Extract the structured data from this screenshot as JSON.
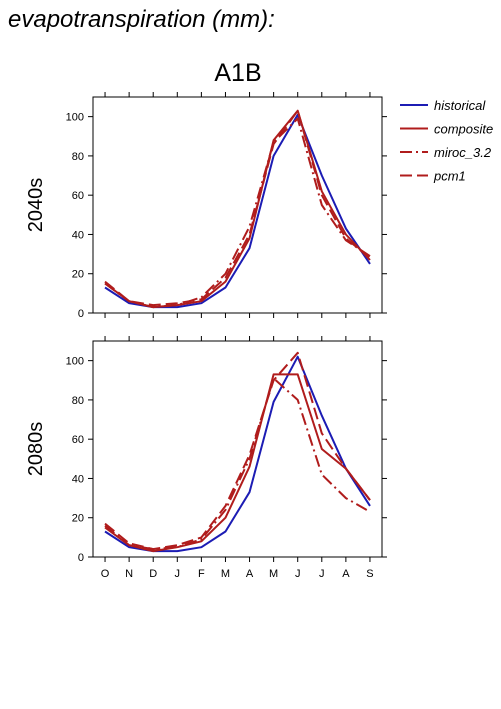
{
  "page": {
    "title": "evapotranspiration (mm):"
  },
  "chart_data": [
    {
      "type": "line",
      "title": "A1B",
      "ylabel": "2040s",
      "categories": [
        "O",
        "N",
        "D",
        "J",
        "F",
        "M",
        "A",
        "M",
        "J",
        "J",
        "A",
        "S"
      ],
      "ylim": [
        0,
        110
      ],
      "yticks": [
        0,
        20,
        40,
        60,
        80,
        100
      ],
      "series": [
        {
          "name": "historical",
          "values": [
            13,
            5,
            3,
            3,
            5,
            13,
            33,
            80,
            101,
            70,
            43,
            25
          ]
        },
        {
          "name": "composite",
          "values": [
            15,
            6,
            3,
            4,
            6,
            16,
            38,
            88,
            103,
            62,
            40,
            27
          ]
        },
        {
          "name": "miroc_3.2",
          "values": [
            15,
            6,
            3,
            4,
            8,
            20,
            44,
            87,
            99,
            55,
            37,
            29
          ]
        },
        {
          "name": "pcm1",
          "values": [
            16,
            6,
            4,
            5,
            7,
            18,
            40,
            86,
            103,
            60,
            38,
            28
          ]
        }
      ]
    },
    {
      "type": "line",
      "title": "",
      "ylabel": "2080s",
      "categories": [
        "O",
        "N",
        "D",
        "J",
        "F",
        "M",
        "A",
        "M",
        "J",
        "J",
        "A",
        "S"
      ],
      "ylim": [
        0,
        110
      ],
      "yticks": [
        0,
        20,
        40,
        60,
        80,
        100
      ],
      "series": [
        {
          "name": "historical",
          "values": [
            13,
            5,
            3,
            3,
            5,
            13,
            33,
            79,
            102,
            72,
            45,
            26
          ]
        },
        {
          "name": "composite",
          "values": [
            15,
            6,
            3,
            5,
            8,
            20,
            46,
            93,
            93,
            55,
            45,
            29
          ]
        },
        {
          "name": "miroc_3.2",
          "values": [
            16,
            6,
            4,
            5,
            9,
            24,
            50,
            91,
            80,
            42,
            30,
            23
          ]
        },
        {
          "name": "pcm1",
          "values": [
            17,
            7,
            4,
            6,
            10,
            26,
            52,
            90,
            104,
            63,
            45,
            29
          ]
        }
      ]
    }
  ],
  "legend": [
    {
      "name": "historical",
      "color": "#1c1cb4",
      "dash": "solid"
    },
    {
      "name": "composite",
      "color": "#b01c1c",
      "dash": "solid"
    },
    {
      "name": "miroc_3.2",
      "color": "#b01c1c",
      "dash": "dashdot"
    },
    {
      "name": "pcm1",
      "color": "#b01c1c",
      "dash": "dash"
    }
  ]
}
